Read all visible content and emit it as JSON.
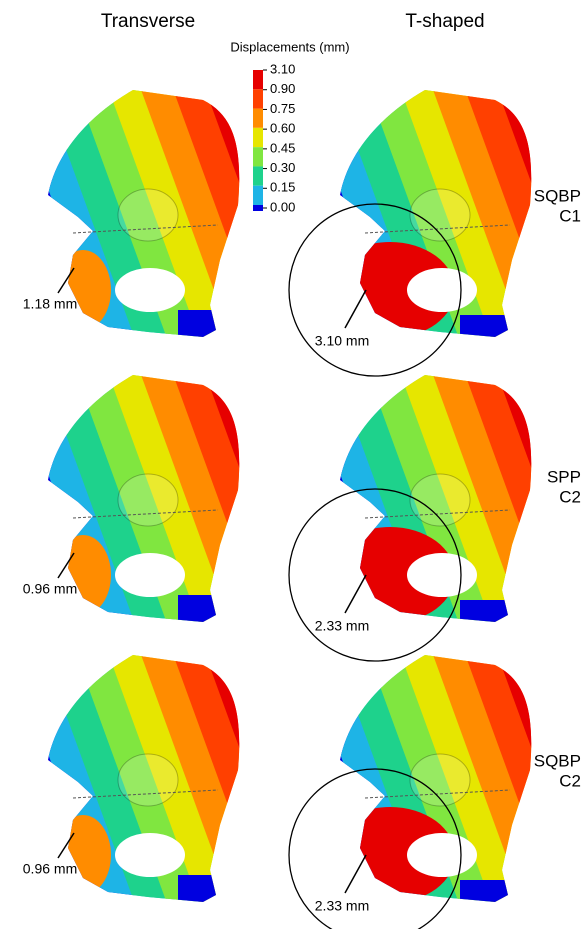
{
  "columns": [
    "Transverse",
    "T-shaped"
  ],
  "legend": {
    "title": "Displacements (mm)",
    "levels": [
      "3.10",
      "0.90",
      "0.75",
      "0.60",
      "0.45",
      "0.30",
      "0.15",
      "0.00"
    ],
    "colors": [
      "#e60000",
      "#ff4000",
      "#ff8c00",
      "#e6e600",
      "#80e640",
      "#1ed28c",
      "#1eb4e6"
    ],
    "base_color": "#0000e0"
  },
  "rows": [
    {
      "label_lines": [
        "SQBP",
        "C1"
      ],
      "annotations": [
        "1.18 mm",
        "3.10 mm"
      ]
    },
    {
      "label_lines": [
        "SPP",
        "C2"
      ],
      "annotations": [
        "0.96 mm",
        "2.33 mm"
      ]
    },
    {
      "label_lines": [
        "SQBP",
        "C2"
      ],
      "annotations": [
        "0.96 mm",
        "2.33 mm"
      ]
    }
  ]
}
